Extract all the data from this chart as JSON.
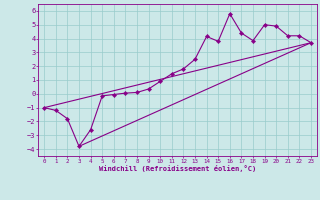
{
  "xlabel": "Windchill (Refroidissement éolien,°C)",
  "xlim": [
    -0.5,
    23.5
  ],
  "ylim": [
    -4.5,
    6.5
  ],
  "xticks": [
    0,
    1,
    2,
    3,
    4,
    5,
    6,
    7,
    8,
    9,
    10,
    11,
    12,
    13,
    14,
    15,
    16,
    17,
    18,
    19,
    20,
    21,
    22,
    23
  ],
  "yticks": [
    -4,
    -3,
    -2,
    -1,
    0,
    1,
    2,
    3,
    4,
    5,
    6
  ],
  "bg_color": "#cce8e8",
  "line_color": "#880088",
  "grid_color": "#99cccc",
  "data_x": [
    0,
    1,
    2,
    3,
    4,
    5,
    6,
    7,
    8,
    9,
    10,
    11,
    12,
    13,
    14,
    15,
    16,
    17,
    18,
    19,
    20,
    21,
    22,
    23
  ],
  "data_y": [
    -1.0,
    -1.2,
    -1.8,
    -3.8,
    -2.6,
    -0.15,
    -0.05,
    0.05,
    0.1,
    0.35,
    0.9,
    1.45,
    1.8,
    2.5,
    4.15,
    3.8,
    5.8,
    4.4,
    3.85,
    5.0,
    4.9,
    4.2,
    4.2,
    3.7
  ],
  "line1_x": [
    0,
    23
  ],
  "line1_y": [
    -1.0,
    3.7
  ],
  "line2_x": [
    3,
    23
  ],
  "line2_y": [
    -3.8,
    3.7
  ]
}
